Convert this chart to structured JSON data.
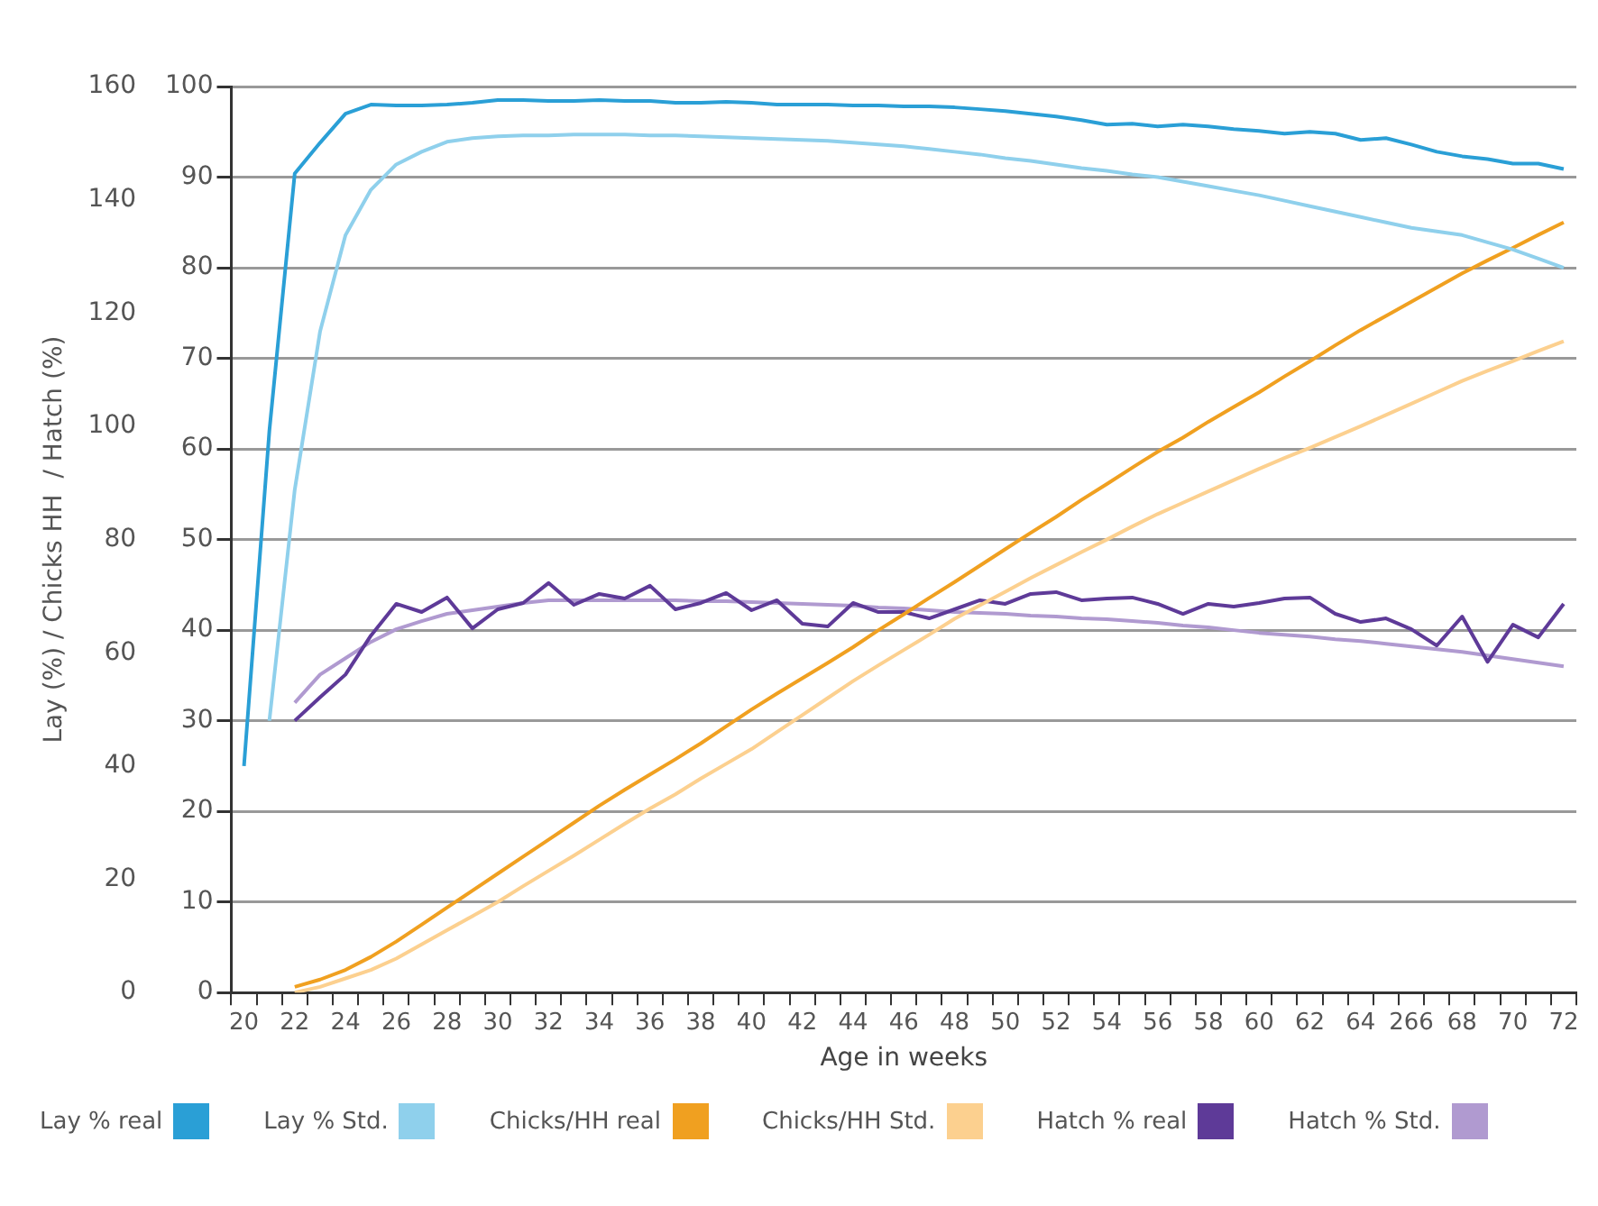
{
  "chart_data": {
    "type": "line",
    "xlabel": "Age in weeks",
    "y2label": "Lay (%) / Chicks HH  / Hatch (%)",
    "categories": [
      "20",
      null,
      "22",
      null,
      "24",
      null,
      "26",
      null,
      "28",
      null,
      "30",
      null,
      "32",
      null,
      "34",
      null,
      "36",
      null,
      "38",
      null,
      "40",
      null,
      "42",
      null,
      "44",
      null,
      "46",
      null,
      "48",
      null,
      "50",
      null,
      "52",
      null,
      "54",
      null,
      "56",
      null,
      "58",
      null,
      "60",
      null,
      "62",
      null,
      "64",
      null,
      "266",
      null,
      "68",
      null,
      "70",
      null,
      "72"
    ],
    "ylim": [
      0,
      100
    ],
    "yticks": [
      0,
      10,
      20,
      30,
      40,
      50,
      60,
      70,
      80,
      90,
      100
    ],
    "y2lim": [
      0,
      160
    ],
    "y2ticks": [
      0,
      20,
      40,
      60,
      80,
      100,
      120,
      140,
      160
    ],
    "grid": "y",
    "legend": "bottom",
    "marker": "none",
    "series": [
      {
        "name": "Lay % real",
        "color": "#2a9fd6",
        "values": [
          25,
          62,
          90.4,
          93.8,
          97,
          98,
          97.9,
          97.9,
          98,
          98.2,
          98.5,
          98.5,
          98.4,
          98.4,
          98.5,
          98.4,
          98.4,
          98.2,
          98.2,
          98.3,
          98.2,
          98,
          98,
          98,
          97.9,
          97.9,
          97.8,
          97.8,
          97.7,
          97.5,
          97.3,
          97,
          96.7,
          96.3,
          95.8,
          95.9,
          95.6,
          95.8,
          95.6,
          95.3,
          95.1,
          94.8,
          95,
          94.8,
          94.1,
          94.3,
          93.6,
          92.8,
          92.3,
          92,
          91.5,
          91.5,
          90.9
        ]
      },
      {
        "name": "Lay % Std.",
        "color": "#8fd0ec",
        "values": [
          null,
          30,
          55.5,
          73,
          83.6,
          88.6,
          91.4,
          92.8,
          93.9,
          94.3,
          94.5,
          94.6,
          94.6,
          94.7,
          94.7,
          94.7,
          94.6,
          94.6,
          94.5,
          94.4,
          94.3,
          94.2,
          94.1,
          94,
          93.8,
          93.6,
          93.4,
          93.1,
          92.8,
          92.5,
          92.1,
          91.8,
          91.4,
          91,
          90.7,
          90.3,
          90,
          89.5,
          89,
          88.5,
          88,
          87.4,
          86.8,
          86.2,
          85.6,
          85,
          84.4,
          84,
          83.6,
          82.8,
          82,
          81,
          80
        ]
      },
      {
        "name": "Chicks/HH real",
        "color": "#f0a020",
        "axis": "y2",
        "values": [
          null,
          null,
          1,
          2.3,
          4,
          6.3,
          9,
          12,
          15,
          18,
          21,
          24,
          27,
          30,
          33,
          35.8,
          38.5,
          41.2,
          44,
          47,
          50,
          52.8,
          55.5,
          58.2,
          61,
          64,
          66.8,
          69.7,
          72.5,
          75.4,
          78.3,
          81.2,
          84,
          87,
          89.8,
          92.7,
          95.5,
          98,
          100.8,
          103.4,
          106,
          108.8,
          111.5,
          114.3,
          117,
          119.5,
          122,
          124.5,
          127,
          129.3,
          131.5,
          133.8,
          136
        ]
      },
      {
        "name": "Chicks/HH Std.",
        "color": "#fcd08f",
        "axis": "y2",
        "values": [
          null,
          null,
          0,
          1,
          2.5,
          4,
          6,
          8.5,
          11,
          13.5,
          16,
          18.8,
          21.5,
          24.2,
          27,
          29.8,
          32.5,
          35,
          37.8,
          40.4,
          43,
          46,
          49,
          52,
          55,
          57.8,
          60.5,
          63.2,
          66,
          68.4,
          70.8,
          73.2,
          75.5,
          77.8,
          80,
          82.3,
          84.5,
          86.5,
          88.5,
          90.5,
          92.5,
          94.4,
          96.2,
          98.1,
          100,
          102,
          104,
          106,
          108,
          109.8,
          111.5,
          113.3,
          115
        ]
      },
      {
        "name": "Hatch % real",
        "color": "#5e3a98",
        "values": [
          null,
          null,
          30,
          32.6,
          35.1,
          39.4,
          42.9,
          42,
          43.6,
          40.2,
          42.3,
          43,
          45.2,
          42.8,
          44,
          43.5,
          44.9,
          42.3,
          43,
          44.1,
          42.2,
          43.3,
          40.7,
          40.4,
          43,
          42,
          42,
          41.3,
          42.3,
          43.3,
          42.9,
          44,
          44.2,
          43.3,
          43.5,
          43.6,
          42.9,
          41.8,
          42.9,
          42.6,
          43,
          43.5,
          43.6,
          41.8,
          40.9,
          41.3,
          40.1,
          38.3,
          41.5,
          36.5,
          40.6,
          39.2,
          42.9
        ]
      },
      {
        "name": "Hatch % Std.",
        "color": "#b09ad0",
        "values": [
          null,
          null,
          32,
          35.1,
          36.9,
          38.7,
          40.1,
          41,
          41.8,
          42.2,
          42.6,
          43,
          43.3,
          43.3,
          43.3,
          43.3,
          43.3,
          43.3,
          43.2,
          43.2,
          43.1,
          43,
          42.9,
          42.8,
          42.7,
          42.5,
          42.4,
          42.2,
          42,
          41.9,
          41.8,
          41.6,
          41.5,
          41.3,
          41.2,
          41,
          40.8,
          40.5,
          40.3,
          40,
          39.7,
          39.5,
          39.3,
          39,
          38.8,
          38.5,
          38.2,
          37.9,
          37.6,
          37.2,
          36.8,
          36.4,
          36
        ]
      }
    ]
  }
}
